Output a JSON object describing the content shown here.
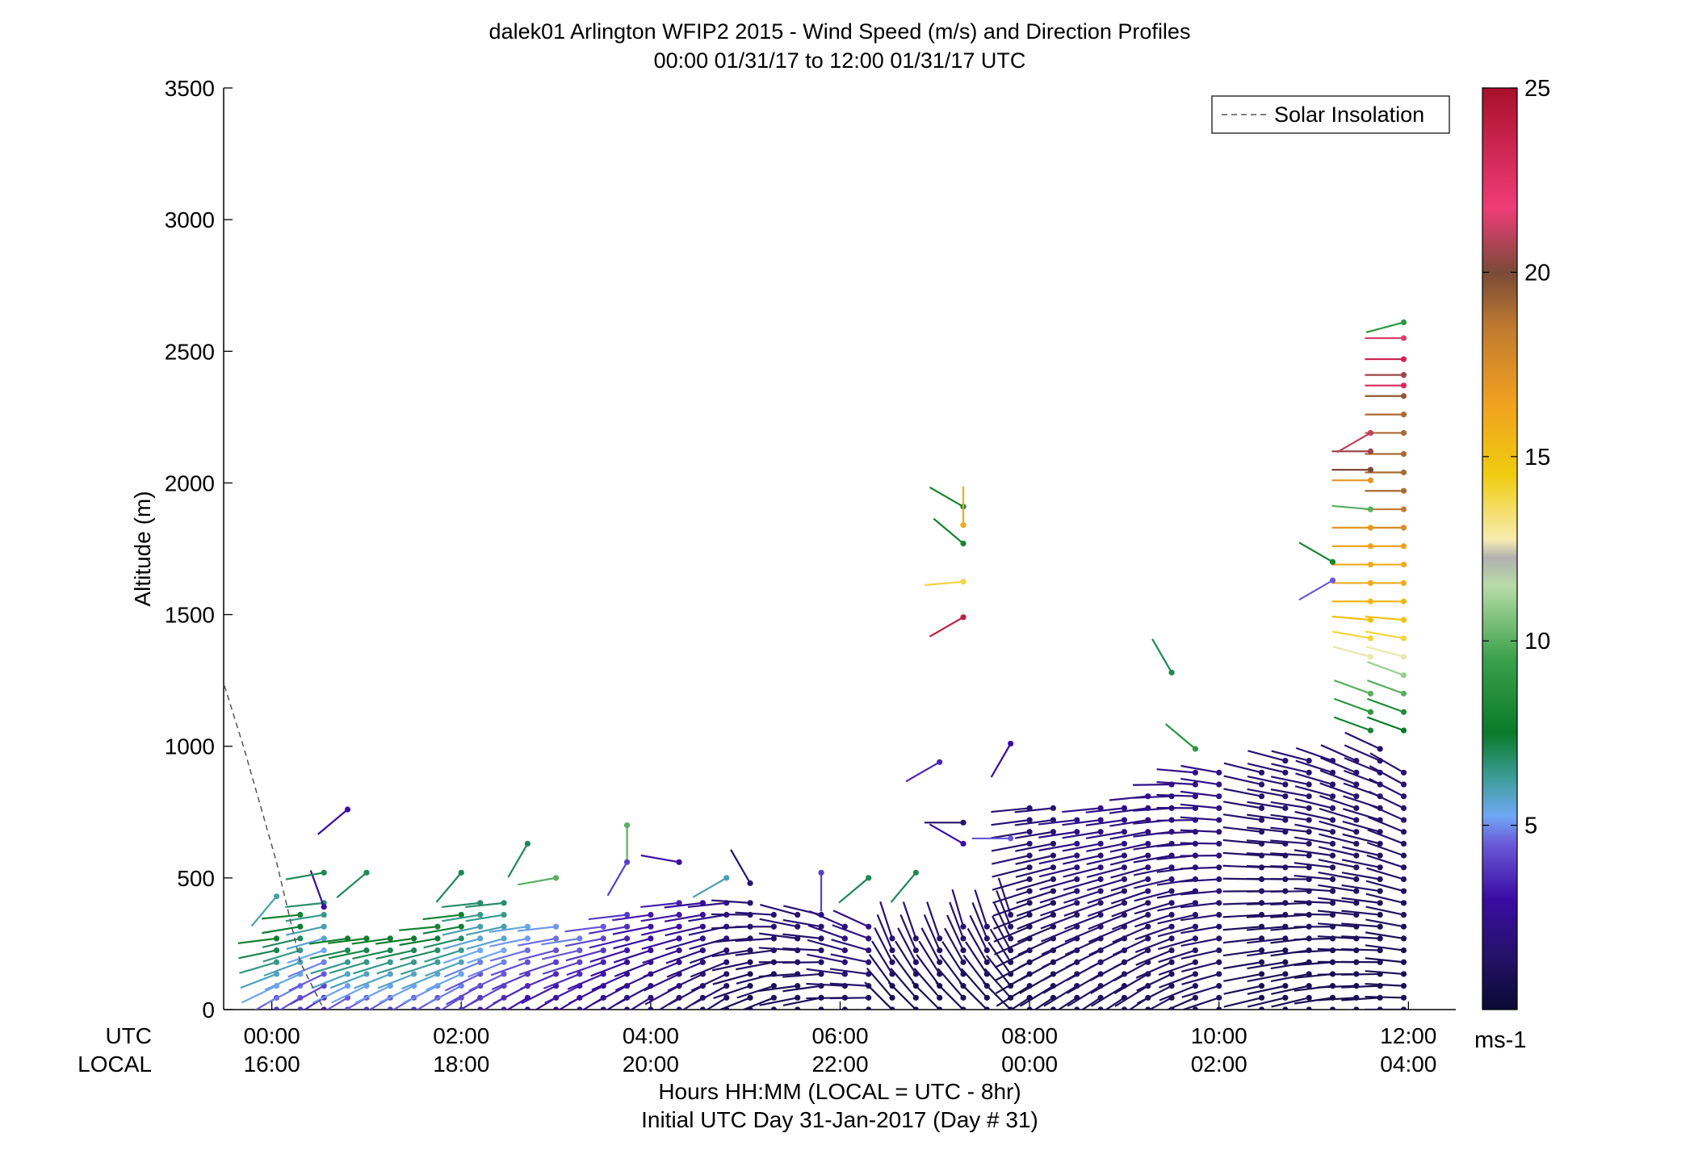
{
  "chart_data": {
    "type": "wind-barb-profile",
    "title": "dalek01 Arlington WFIP2 2015 - Wind Speed (m/s) and Direction Profiles",
    "subtitle": "00:00 01/31/17 to 12:00 01/31/17  UTC",
    "ylabel": "Altitude (m)",
    "xlabel": "Hours HH:MM  (LOCAL = UTC - 8hr)",
    "xlabel2": "Initial UTC Day 31-Jan-2017 (Day # 31)",
    "utc_row_label": "UTC",
    "local_row_label": "LOCAL",
    "ylim": [
      0,
      3500
    ],
    "xlim_hours_utc": [
      -0.5,
      12.5
    ],
    "y_ticks": [
      "0",
      "500",
      "1000",
      "1500",
      "2000",
      "2500",
      "3000",
      "3500"
    ],
    "y_tick_values": [
      0,
      500,
      1000,
      1500,
      2000,
      2500,
      3000,
      3500
    ],
    "x_tick_hours": [
      0,
      2,
      4,
      6,
      8,
      10,
      12
    ],
    "x_ticks_utc": [
      "00:00",
      "02:00",
      "04:00",
      "06:00",
      "08:00",
      "10:00",
      "12:00"
    ],
    "x_ticks_local": [
      "16:00",
      "18:00",
      "20:00",
      "22:00",
      "00:00",
      "02:00",
      "04:00"
    ],
    "legend": {
      "label": "Solar Insolation",
      "placement": "top-right",
      "style": "dashed gray"
    },
    "colorbar": {
      "range": [
        0,
        25
      ],
      "ticks": [
        "5",
        "10",
        "15",
        "20",
        "25"
      ],
      "tick_values": [
        5,
        10,
        15,
        20,
        25
      ],
      "unit": "ms-1",
      "colormap": [
        "#0b0a33",
        "#3a0ca3",
        "#6a5ad8",
        "#6fa8f5",
        "#3f9e9b",
        "#0a7a2a",
        "#3aa04a",
        "#b8dca8",
        "#f6ecb0",
        "#f0cc10",
        "#f0a020",
        "#c07a30",
        "#7a4a38",
        "#f03c78",
        "#a8102a"
      ]
    },
    "solar_insolation": {
      "x_hours": [
        -0.5,
        -0.3,
        0.05,
        0.3,
        0.55
      ],
      "altitude_m": [
        1230,
        1000,
        560,
        180,
        0
      ]
    },
    "profiles": [
      {
        "t": 0.05,
        "bottom": 0,
        "top": 290,
        "speed": 7,
        "dir": 250
      },
      {
        "t": 0.3,
        "bottom": 0,
        "top": 370,
        "speed": 7,
        "dir": 250
      },
      {
        "t": 0.55,
        "bottom": 0,
        "top": 420,
        "speed": 6,
        "dir": 250
      },
      {
        "t": 0.8,
        "bottom": 0,
        "top": 300,
        "speed": 7,
        "dir": 250
      },
      {
        "t": 1.0,
        "bottom": 0,
        "top": 290,
        "speed": 7,
        "dir": 250
      },
      {
        "t": 1.25,
        "bottom": 0,
        "top": 300,
        "speed": 7,
        "dir": 250
      },
      {
        "t": 1.5,
        "bottom": 0,
        "top": 300,
        "speed": 7,
        "dir": 250
      },
      {
        "t": 1.75,
        "bottom": 0,
        "top": 320,
        "speed": 7,
        "dir": 250
      },
      {
        "t": 2.0,
        "bottom": 0,
        "top": 380,
        "speed": 7,
        "dir": 250
      },
      {
        "t": 2.2,
        "bottom": 0,
        "top": 420,
        "speed": 6,
        "dir": 250
      },
      {
        "t": 2.45,
        "bottom": 0,
        "top": 420,
        "speed": 6,
        "dir": 250
      },
      {
        "t": 2.7,
        "bottom": 0,
        "top": 350,
        "speed": 5,
        "dir": 250
      },
      {
        "t": 3.0,
        "bottom": 0,
        "top": 330,
        "speed": 4.5,
        "dir": 250
      },
      {
        "t": 3.25,
        "bottom": 0,
        "top": 310,
        "speed": 4.5,
        "dir": 250
      },
      {
        "t": 3.5,
        "bottom": 0,
        "top": 340,
        "speed": 4,
        "dir": 250
      },
      {
        "t": 3.75,
        "bottom": 0,
        "top": 380,
        "speed": 3.5,
        "dir": 250
      },
      {
        "t": 4.0,
        "bottom": 0,
        "top": 400,
        "speed": 3,
        "dir": 250
      },
      {
        "t": 4.3,
        "bottom": 0,
        "top": 420,
        "speed": 3,
        "dir": 250
      },
      {
        "t": 4.55,
        "bottom": 0,
        "top": 430,
        "speed": 2.5,
        "dir": 250
      },
      {
        "t": 4.8,
        "bottom": 0,
        "top": 420,
        "speed": 2,
        "dir": 250
      },
      {
        "t": 5.05,
        "bottom": 0,
        "top": 420,
        "speed": 1.5,
        "dir": 260
      },
      {
        "t": 5.3,
        "bottom": 0,
        "top": 380,
        "speed": 1.5,
        "dir": 260
      },
      {
        "t": 5.55,
        "bottom": 0,
        "top": 360,
        "speed": 1.5,
        "dir": 270
      },
      {
        "t": 5.8,
        "bottom": 0,
        "top": 380,
        "speed": 1.5,
        "dir": 270
      },
      {
        "t": 6.05,
        "bottom": 0,
        "top": 330,
        "speed": 2,
        "dir": 280
      },
      {
        "t": 6.3,
        "bottom": 0,
        "top": 320,
        "speed": 2,
        "dir": 280
      },
      {
        "t": 6.55,
        "bottom": 0,
        "top": 300,
        "speed": 1.5,
        "dir": 330
      },
      {
        "t": 6.8,
        "bottom": 0,
        "top": 310,
        "speed": 1.5,
        "dir": 330
      },
      {
        "t": 7.05,
        "bottom": 0,
        "top": 310,
        "speed": 1.5,
        "dir": 330
      },
      {
        "t": 7.3,
        "bottom": 0,
        "top": 330,
        "speed": 1.5,
        "dir": 330
      },
      {
        "t": 7.55,
        "bottom": 0,
        "top": 350,
        "speed": 1.5,
        "dir": 330
      },
      {
        "t": 7.8,
        "bottom": 0,
        "top": 400,
        "speed": 1.5,
        "dir": 330
      },
      {
        "t": 8.0,
        "bottom": 0,
        "top": 780,
        "speed": 1.5,
        "dir": 250
      },
      {
        "t": 8.25,
        "bottom": 0,
        "top": 790,
        "speed": 1.5,
        "dir": 250
      },
      {
        "t": 8.5,
        "bottom": 0,
        "top": 760,
        "speed": 2,
        "dir": 250
      },
      {
        "t": 8.75,
        "bottom": 0,
        "top": 780,
        "speed": 2,
        "dir": 250
      },
      {
        "t": 9.0,
        "bottom": 0,
        "top": 800,
        "speed": 2,
        "dir": 250
      },
      {
        "t": 9.25,
        "bottom": 0,
        "top": 830,
        "speed": 2,
        "dir": 250
      },
      {
        "t": 9.5,
        "bottom": 0,
        "top": 880,
        "speed": 2,
        "dir": 255
      },
      {
        "t": 9.75,
        "bottom": 0,
        "top": 900,
        "speed": 2,
        "dir": 260
      },
      {
        "t": 10.0,
        "bottom": 0,
        "top": 900,
        "speed": 2,
        "dir": 265
      },
      {
        "t": 10.45,
        "bottom": 0,
        "top": 930,
        "speed": 1.5,
        "dir": 270
      },
      {
        "t": 10.7,
        "bottom": 0,
        "top": 950,
        "speed": 1.5,
        "dir": 270
      },
      {
        "t": 10.95,
        "bottom": 0,
        "top": 960,
        "speed": 1.5,
        "dir": 270
      },
      {
        "t": 11.2,
        "bottom": 0,
        "top": 970,
        "speed": 1.5,
        "dir": 275
      },
      {
        "t": 11.45,
        "bottom": 0,
        "top": 980,
        "speed": 1.5,
        "dir": 280
      },
      {
        "t": 11.7,
        "bottom": 0,
        "top": 990,
        "speed": 1.5,
        "dir": 280
      },
      {
        "t": 11.95,
        "bottom": 0,
        "top": 900,
        "speed": 1.5,
        "dir": 285
      }
    ],
    "upper_columns": [
      {
        "t": 11.95,
        "levels": [
          {
            "alt": 1060,
            "speed": 7.5,
            "dir": 290
          },
          {
            "alt": 1130,
            "speed": 8.5,
            "dir": 290
          },
          {
            "alt": 1200,
            "speed": 10,
            "dir": 290
          },
          {
            "alt": 1270,
            "speed": 11,
            "dir": 290
          },
          {
            "alt": 1340,
            "speed": 12.5,
            "dir": 285
          },
          {
            "alt": 1410,
            "speed": 14,
            "dir": 280
          },
          {
            "alt": 1480,
            "speed": 15,
            "dir": 275
          },
          {
            "alt": 1550,
            "speed": 15.5,
            "dir": 270
          },
          {
            "alt": 1620,
            "speed": 16,
            "dir": 270
          },
          {
            "alt": 1690,
            "speed": 16,
            "dir": 270
          },
          {
            "alt": 1760,
            "speed": 16.5,
            "dir": 270
          },
          {
            "alt": 1830,
            "speed": 17.5,
            "dir": 270
          },
          {
            "alt": 1900,
            "speed": 18.5,
            "dir": 270
          },
          {
            "alt": 1970,
            "speed": 19,
            "dir": 270
          },
          {
            "alt": 2040,
            "speed": 19,
            "dir": 270
          },
          {
            "alt": 2110,
            "speed": 19,
            "dir": 270
          },
          {
            "alt": 2190,
            "speed": 19,
            "dir": 270
          },
          {
            "alt": 2260,
            "speed": 19,
            "dir": 270
          },
          {
            "alt": 2330,
            "speed": 19.5,
            "dir": 270
          },
          {
            "alt": 2370,
            "speed": 23,
            "dir": 270
          },
          {
            "alt": 2410,
            "speed": 20.5,
            "dir": 270
          },
          {
            "alt": 2470,
            "speed": 23.5,
            "dir": 270
          },
          {
            "alt": 2550,
            "speed": 21.5,
            "dir": 270
          },
          {
            "alt": 2610,
            "speed": 9,
            "dir": 255
          }
        ]
      },
      {
        "t": 11.6,
        "levels": [
          {
            "alt": 1060,
            "speed": 8,
            "dir": 290
          },
          {
            "alt": 1130,
            "speed": 9,
            "dir": 290
          },
          {
            "alt": 1200,
            "speed": 10,
            "dir": 290
          },
          {
            "alt": 1340,
            "speed": 12.5,
            "dir": 285
          },
          {
            "alt": 1410,
            "speed": 14,
            "dir": 280
          },
          {
            "alt": 1480,
            "speed": 15,
            "dir": 275
          },
          {
            "alt": 1550,
            "speed": 15.5,
            "dir": 270
          },
          {
            "alt": 1620,
            "speed": 16,
            "dir": 270
          },
          {
            "alt": 1690,
            "speed": 16,
            "dir": 270
          },
          {
            "alt": 1760,
            "speed": 16.5,
            "dir": 270
          },
          {
            "alt": 1830,
            "speed": 17,
            "dir": 270
          },
          {
            "alt": 1900,
            "speed": 10,
            "dir": 275
          },
          {
            "alt": 2010,
            "speed": 17,
            "dir": 270
          },
          {
            "alt": 2050,
            "speed": 20,
            "dir": 270
          },
          {
            "alt": 2120,
            "speed": 20.5,
            "dir": 270
          },
          {
            "alt": 2190,
            "speed": 21,
            "dir": 240
          }
        ]
      }
    ],
    "scattered_points": [
      {
        "t": 0.05,
        "alt": 430,
        "speed": 6,
        "dir": 220
      },
      {
        "t": 0.55,
        "alt": 390,
        "speed": 3,
        "dir": 340
      },
      {
        "t": 0.8,
        "alt": 760,
        "speed": 3,
        "dir": 230
      },
      {
        "t": 0.55,
        "alt": 520,
        "speed": 7,
        "dir": 260
      },
      {
        "t": 1.0,
        "alt": 520,
        "speed": 7,
        "dir": 230
      },
      {
        "t": 2.0,
        "alt": 520,
        "speed": 7,
        "dir": 220
      },
      {
        "t": 2.7,
        "alt": 630,
        "speed": 7,
        "dir": 210
      },
      {
        "t": 3.0,
        "alt": 500,
        "speed": 10,
        "dir": 260
      },
      {
        "t": 3.75,
        "alt": 700,
        "speed": 10,
        "dir": 180
      },
      {
        "t": 3.75,
        "alt": 560,
        "speed": 4,
        "dir": 210
      },
      {
        "t": 4.3,
        "alt": 560,
        "speed": 3,
        "dir": 280
      },
      {
        "t": 4.8,
        "alt": 500,
        "speed": 6,
        "dir": 240
      },
      {
        "t": 5.05,
        "alt": 480,
        "speed": 1.5,
        "dir": 330
      },
      {
        "t": 5.8,
        "alt": 520,
        "speed": 4,
        "dir": 180
      },
      {
        "t": 6.3,
        "alt": 500,
        "speed": 7,
        "dir": 230
      },
      {
        "t": 6.8,
        "alt": 520,
        "speed": 7,
        "dir": 220
      },
      {
        "t": 7.05,
        "alt": 940,
        "speed": 3.5,
        "dir": 240
      },
      {
        "t": 7.3,
        "alt": 710,
        "speed": 1.5,
        "dir": 270
      },
      {
        "t": 7.3,
        "alt": 630,
        "speed": 3,
        "dir": 300
      },
      {
        "t": 7.8,
        "alt": 650,
        "speed": 4.5,
        "dir": 270
      },
      {
        "t": 7.8,
        "alt": 1010,
        "speed": 3,
        "dir": 210
      },
      {
        "t": 7.3,
        "alt": 1910,
        "speed": 8,
        "dir": 300
      },
      {
        "t": 7.3,
        "alt": 1840,
        "speed": 16,
        "dir": 360
      },
      {
        "t": 7.3,
        "alt": 1770,
        "speed": 8,
        "dir": 310
      },
      {
        "t": 7.3,
        "alt": 1625,
        "speed": 14,
        "dir": 265
      },
      {
        "t": 7.3,
        "alt": 1490,
        "speed": 24,
        "dir": 240
      },
      {
        "t": 9.75,
        "alt": 990,
        "speed": 9,
        "dir": 310
      },
      {
        "t": 9.5,
        "alt": 1280,
        "speed": 7,
        "dir": 330
      },
      {
        "t": 11.2,
        "alt": 1700,
        "speed": 8,
        "dir": 300
      },
      {
        "t": 11.2,
        "alt": 1630,
        "speed": 4.5,
        "dir": 240
      }
    ]
  }
}
